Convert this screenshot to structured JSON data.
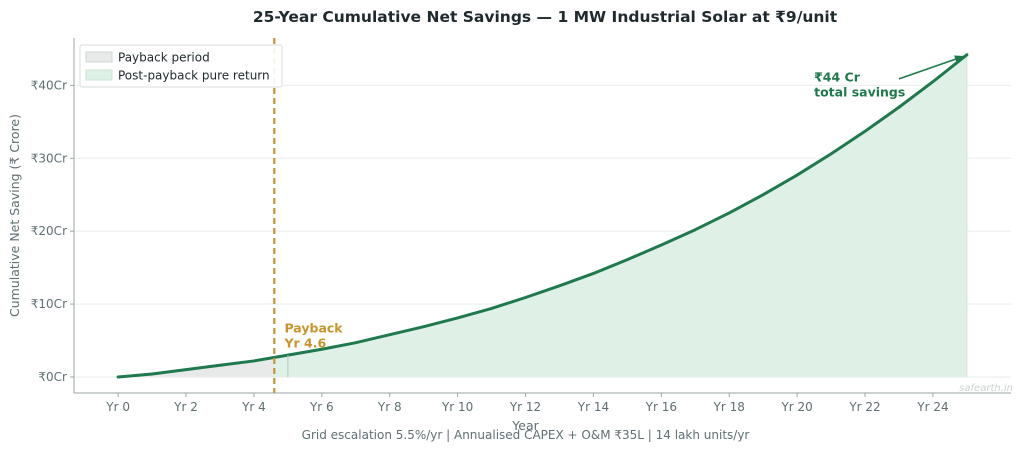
{
  "chart_data": {
    "type": "area",
    "title": "25-Year Cumulative Net Savings — 1 MW Industrial Solar at ₹9/unit",
    "xlabel": "Year",
    "ylabel": "Cumulative Net Saving (₹ Crore)",
    "footer": "Grid escalation 5.5%/yr  |  Annualised CAPEX + O&M ₹35L  |  14 lakh units/yr",
    "watermark": "safearth.in",
    "xlim": [
      -1.3,
      26.3
    ],
    "ylim": [
      -2.2,
      46.5
    ],
    "x_ticks": [
      0,
      2,
      4,
      6,
      8,
      10,
      12,
      14,
      16,
      18,
      20,
      22,
      24
    ],
    "x_tick_labels": [
      "Yr 0",
      "Yr 2",
      "Yr 4",
      "Yr 6",
      "Yr 8",
      "Yr 10",
      "Yr 12",
      "Yr 14",
      "Yr 16",
      "Yr 18",
      "Yr 20",
      "Yr 22",
      "Yr 24"
    ],
    "y_ticks": [
      0,
      10,
      20,
      30,
      40
    ],
    "y_tick_labels": [
      "₹0Cr",
      "₹10Cr",
      "₹20Cr",
      "₹30Cr",
      "₹40Cr"
    ],
    "grid": "horizontal",
    "legend_position": "top-left",
    "series": [
      {
        "name": "",
        "color": "#1e7a4c",
        "x": [
          0,
          1,
          2,
          3,
          4,
          5,
          6,
          7,
          8,
          9,
          10,
          11,
          12,
          13,
          14,
          15,
          16,
          17,
          18,
          19,
          20,
          21,
          22,
          23,
          24,
          25
        ],
        "values": [
          0,
          0.4,
          1.0,
          1.6,
          2.2,
          3.0,
          3.8,
          4.7,
          5.8,
          6.9,
          8.1,
          9.4,
          10.9,
          12.5,
          14.2,
          16.1,
          18.1,
          20.2,
          22.5,
          25.0,
          27.7,
          30.6,
          33.7,
          37.0,
          40.5,
          44.2
        ]
      }
    ],
    "legend": [
      {
        "label": "Payback period",
        "color": "#e8eae9"
      },
      {
        "label": "Post-payback pure return",
        "color": "#dff1e6"
      }
    ],
    "payback_year": 4.6,
    "annotations": [
      {
        "id": "total",
        "lines": [
          "₹44 Cr",
          "total savings"
        ],
        "x": 20.5,
        "y": 40.5,
        "arrow_to": [
          25,
          44.2
        ],
        "color": "#1e7a4c"
      },
      {
        "id": "payback",
        "lines": [
          "Payback",
          "Yr 4.6"
        ],
        "x": 4.9,
        "y": 6.1,
        "color": "#c8952d"
      }
    ]
  }
}
